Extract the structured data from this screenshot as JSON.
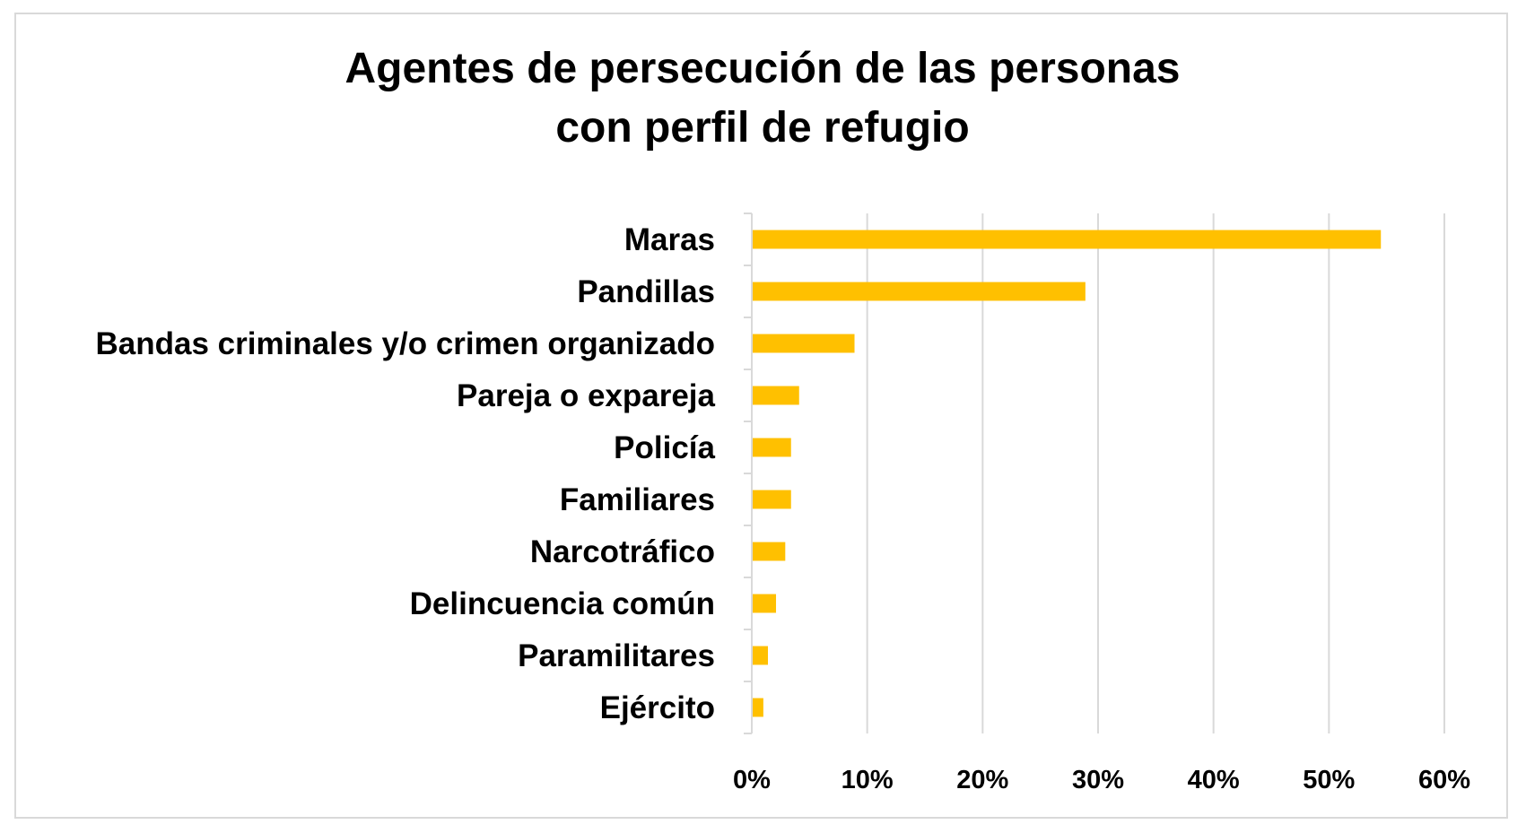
{
  "chart_data": {
    "type": "bar",
    "orientation": "horizontal",
    "title_lines": [
      "Agentes de persecución de las personas",
      "con perfil de refugio"
    ],
    "categories": [
      "Maras",
      "Pandillas",
      "Bandas criminales y/o crimen organizado",
      "Pareja o expareja",
      "Policía",
      "Familiares",
      "Narcotráfico",
      "Delincuencia común",
      "Paramilitares",
      "Ejército"
    ],
    "values": [
      54.5,
      28.9,
      8.9,
      4.1,
      3.4,
      3.4,
      2.9,
      2.1,
      1.4,
      1.0
    ],
    "unit": "%",
    "xlim": [
      0,
      60
    ],
    "xticks": [
      0,
      10,
      20,
      30,
      40,
      50,
      60
    ],
    "xtick_labels": [
      "0%",
      "10%",
      "20%",
      "30%",
      "40%",
      "50%",
      "60%"
    ],
    "xlabel": "",
    "ylabel": "",
    "grid": true,
    "legend": "none",
    "colors": {
      "bar": "#FFC000",
      "grid": "#d9d9d9",
      "axis": "#d9d9d9",
      "text": "#000000"
    }
  }
}
